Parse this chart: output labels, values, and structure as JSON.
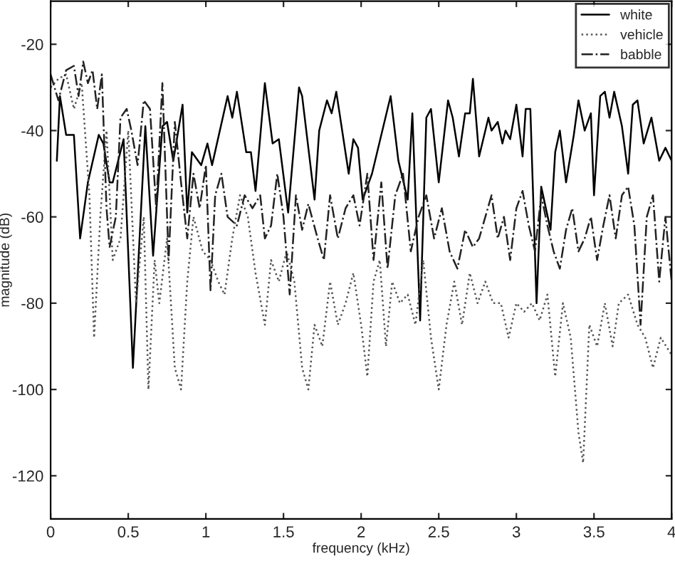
{
  "chart_data": {
    "type": "line",
    "xlabel": "frequency (kHz)",
    "ylabel": "magnitude (dB)",
    "xlim": [
      0,
      4
    ],
    "ylim": [
      -130,
      -10
    ],
    "xticks": [
      0,
      0.5,
      1,
      1.5,
      2,
      2.5,
      3,
      3.5,
      4
    ],
    "yticks": [
      -120,
      -100,
      -80,
      -60,
      -40,
      -20
    ],
    "grid": false,
    "legend": "top right",
    "marker": "none",
    "series": [
      {
        "name": "white",
        "color": "#000000",
        "line_style": "solid",
        "x": [
          0.04,
          0.06,
          0.1,
          0.15,
          0.19,
          0.24,
          0.31,
          0.34,
          0.38,
          0.4,
          0.47,
          0.53,
          0.61,
          0.66,
          0.72,
          0.75,
          0.79,
          0.85,
          0.88,
          0.91,
          0.97,
          1.01,
          1.04,
          1.14,
          1.17,
          1.2,
          1.26,
          1.29,
          1.32,
          1.38,
          1.43,
          1.47,
          1.53,
          1.6,
          1.62,
          1.7,
          1.73,
          1.78,
          1.81,
          1.84,
          1.92,
          1.95,
          1.98,
          2.01,
          2.07,
          2.19,
          2.24,
          2.3,
          2.33,
          2.38,
          2.42,
          2.45,
          2.5,
          2.56,
          2.59,
          2.63,
          2.67,
          2.7,
          2.72,
          2.76,
          2.82,
          2.84,
          2.88,
          2.91,
          2.93,
          2.96,
          3.0,
          3.04,
          3.06,
          3.09,
          3.13,
          3.16,
          3.22,
          3.25,
          3.28,
          3.32,
          3.37,
          3.4,
          3.44,
          3.48,
          3.5,
          3.54,
          3.57,
          3.6,
          3.63,
          3.68,
          3.72,
          3.75,
          3.78,
          3.82,
          3.87,
          3.92,
          3.96,
          4.0
        ],
        "values": [
          -47,
          -32,
          -41,
          -41,
          -65,
          -52,
          -41,
          -43,
          -52,
          -52,
          -42,
          -95,
          -39,
          -69,
          -39,
          -38,
          -47,
          -34,
          -59,
          -45,
          -48,
          -43,
          -48,
          -32,
          -37,
          -31,
          -45,
          -45,
          -54,
          -29,
          -43,
          -42,
          -59,
          -30,
          -32,
          -56,
          -40,
          -33,
          -36,
          -31,
          -50,
          -42,
          -44,
          -56,
          -50,
          -32,
          -47,
          -56,
          -36,
          -84,
          -37,
          -35,
          -52,
          -33,
          -37,
          -46,
          -36,
          -36,
          -28,
          -46,
          -37,
          -40,
          -38,
          -43,
          -40,
          -42,
          -34,
          -46,
          -35,
          -35,
          -80,
          -53,
          -63,
          -45,
          -40,
          -52,
          -41,
          -33,
          -40,
          -36,
          -55,
          -32,
          -31,
          -37,
          -31,
          -39,
          -50,
          -34,
          -33,
          -43,
          -37,
          -47,
          -44,
          -47
        ]
      },
      {
        "name": "vehicle",
        "color": "#555555",
        "line_style": "dotted",
        "x": [
          0,
          0.05,
          0.1,
          0.15,
          0.2,
          0.25,
          0.28,
          0.32,
          0.36,
          0.4,
          0.45,
          0.5,
          0.55,
          0.6,
          0.63,
          0.67,
          0.7,
          0.75,
          0.8,
          0.84,
          0.88,
          0.92,
          0.98,
          1.03,
          1.08,
          1.12,
          1.17,
          1.22,
          1.27,
          1.32,
          1.38,
          1.42,
          1.47,
          1.52,
          1.57,
          1.62,
          1.66,
          1.7,
          1.75,
          1.8,
          1.85,
          1.9,
          1.95,
          2.0,
          2.04,
          2.08,
          2.12,
          2.16,
          2.2,
          2.25,
          2.3,
          2.35,
          2.4,
          2.45,
          2.5,
          2.55,
          2.6,
          2.65,
          2.7,
          2.75,
          2.8,
          2.85,
          2.9,
          2.95,
          3.0,
          3.05,
          3.1,
          3.15,
          3.2,
          3.25,
          3.3,
          3.35,
          3.4,
          3.43,
          3.47,
          3.52,
          3.57,
          3.62,
          3.66,
          3.72,
          3.78,
          3.83,
          3.88,
          3.93,
          4.0
        ],
        "values": [
          -30,
          -28,
          -27,
          -35,
          -29,
          -55,
          -88,
          -60,
          -40,
          -70,
          -65,
          -40,
          -80,
          -60,
          -100,
          -70,
          -80,
          -65,
          -95,
          -100,
          -75,
          -60,
          -68,
          -70,
          -75,
          -78,
          -65,
          -55,
          -60,
          -73,
          -85,
          -70,
          -75,
          -68,
          -75,
          -95,
          -100,
          -85,
          -90,
          -75,
          -85,
          -80,
          -73,
          -85,
          -97,
          -75,
          -70,
          -90,
          -75,
          -80,
          -78,
          -85,
          -70,
          -88,
          -100,
          -85,
          -75,
          -85,
          -73,
          -80,
          -75,
          -80,
          -80,
          -88,
          -80,
          -82,
          -80,
          -84,
          -78,
          -97,
          -80,
          -88,
          -110,
          -117,
          -85,
          -90,
          -80,
          -90,
          -80,
          -78,
          -85,
          -88,
          -95,
          -88,
          -92
        ]
      },
      {
        "name": "babble",
        "color": "#222222",
        "line_style": "dashdot",
        "x": [
          0,
          0.05,
          0.1,
          0.15,
          0.18,
          0.21,
          0.24,
          0.27,
          0.3,
          0.33,
          0.36,
          0.38,
          0.42,
          0.45,
          0.49,
          0.52,
          0.56,
          0.6,
          0.64,
          0.68,
          0.72,
          0.76,
          0.8,
          0.84,
          0.88,
          0.92,
          0.96,
          1.0,
          1.03,
          1.06,
          1.1,
          1.14,
          1.2,
          1.25,
          1.3,
          1.35,
          1.38,
          1.42,
          1.46,
          1.5,
          1.54,
          1.58,
          1.62,
          1.66,
          1.72,
          1.76,
          1.8,
          1.85,
          1.9,
          1.95,
          1.99,
          2.04,
          2.08,
          2.13,
          2.17,
          2.22,
          2.27,
          2.32,
          2.37,
          2.42,
          2.47,
          2.52,
          2.57,
          2.62,
          2.67,
          2.72,
          2.76,
          2.8,
          2.84,
          2.88,
          2.92,
          2.96,
          3.0,
          3.04,
          3.08,
          3.12,
          3.16,
          3.2,
          3.24,
          3.28,
          3.32,
          3.36,
          3.4,
          3.44,
          3.48,
          3.52,
          3.56,
          3.6,
          3.64,
          3.68,
          3.72,
          3.76,
          3.8,
          3.84,
          3.88,
          3.92,
          3.96,
          4.0
        ],
        "values": [
          -27,
          -33,
          -26,
          -25,
          -32,
          -24,
          -29,
          -26,
          -35,
          -27,
          -58,
          -67,
          -60,
          -37,
          -35,
          -40,
          -48,
          -33,
          -35,
          -58,
          -29,
          -70,
          -38,
          -52,
          -65,
          -50,
          -58,
          -48,
          -77,
          -55,
          -50,
          -60,
          -62,
          -55,
          -58,
          -55,
          -65,
          -62,
          -50,
          -60,
          -78,
          -55,
          -63,
          -57,
          -65,
          -70,
          -55,
          -65,
          -58,
          -55,
          -62,
          -50,
          -70,
          -52,
          -72,
          -55,
          -50,
          -68,
          -60,
          -55,
          -65,
          -58,
          -68,
          -72,
          -63,
          -67,
          -65,
          -60,
          -55,
          -65,
          -60,
          -70,
          -58,
          -54,
          -62,
          -68,
          -55,
          -62,
          -68,
          -72,
          -63,
          -58,
          -68,
          -65,
          -60,
          -70,
          -62,
          -55,
          -65,
          -55,
          -53,
          -62,
          -85,
          -60,
          -55,
          -75,
          -60,
          -75
        ]
      }
    ]
  }
}
